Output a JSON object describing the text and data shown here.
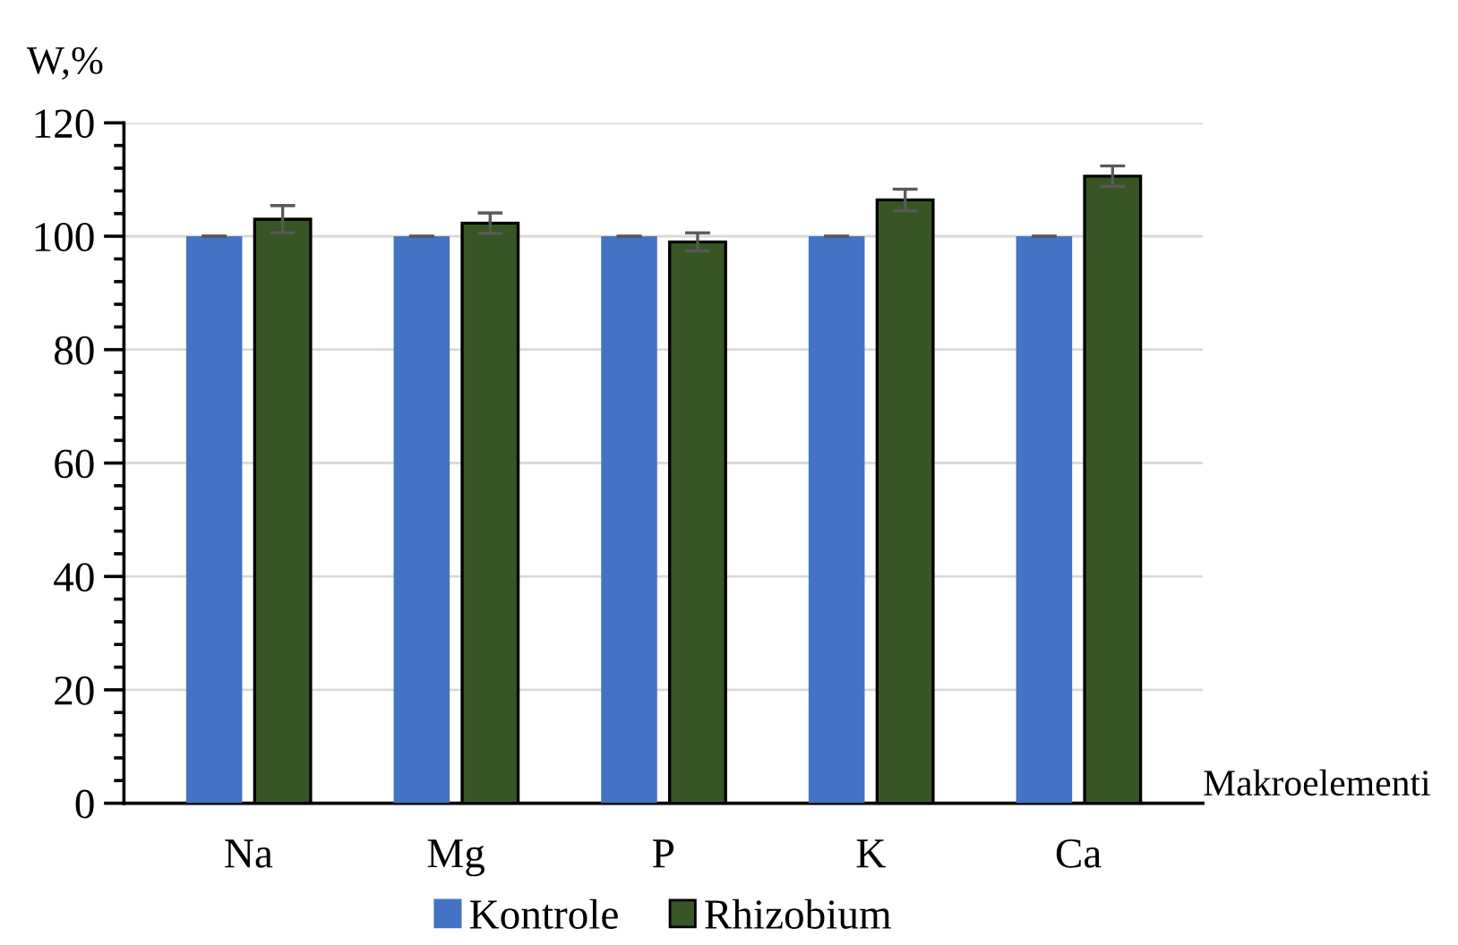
{
  "chart_data": {
    "type": "bar",
    "categories": [
      "Na",
      "Mg",
      "P",
      "K",
      "Ca"
    ],
    "series": [
      {
        "name": "Kontrole",
        "color": "#4472c4",
        "values": [
          100,
          100,
          100,
          100,
          100
        ],
        "errors": [
          0,
          0,
          0,
          0,
          0
        ]
      },
      {
        "name": "Rhizobium",
        "color": "#375623",
        "values": [
          103.0,
          102.3,
          99.0,
          106.4,
          110.6
        ],
        "errors": [
          2.4,
          1.8,
          1.6,
          1.9,
          1.8
        ]
      }
    ],
    "xlabel": "Makroelementi",
    "ylabel": "W,%",
    "ylim": [
      0,
      120
    ],
    "yticks": [
      0,
      20,
      40,
      60,
      80,
      100,
      120
    ],
    "grid": "y",
    "legend": "bottom"
  }
}
